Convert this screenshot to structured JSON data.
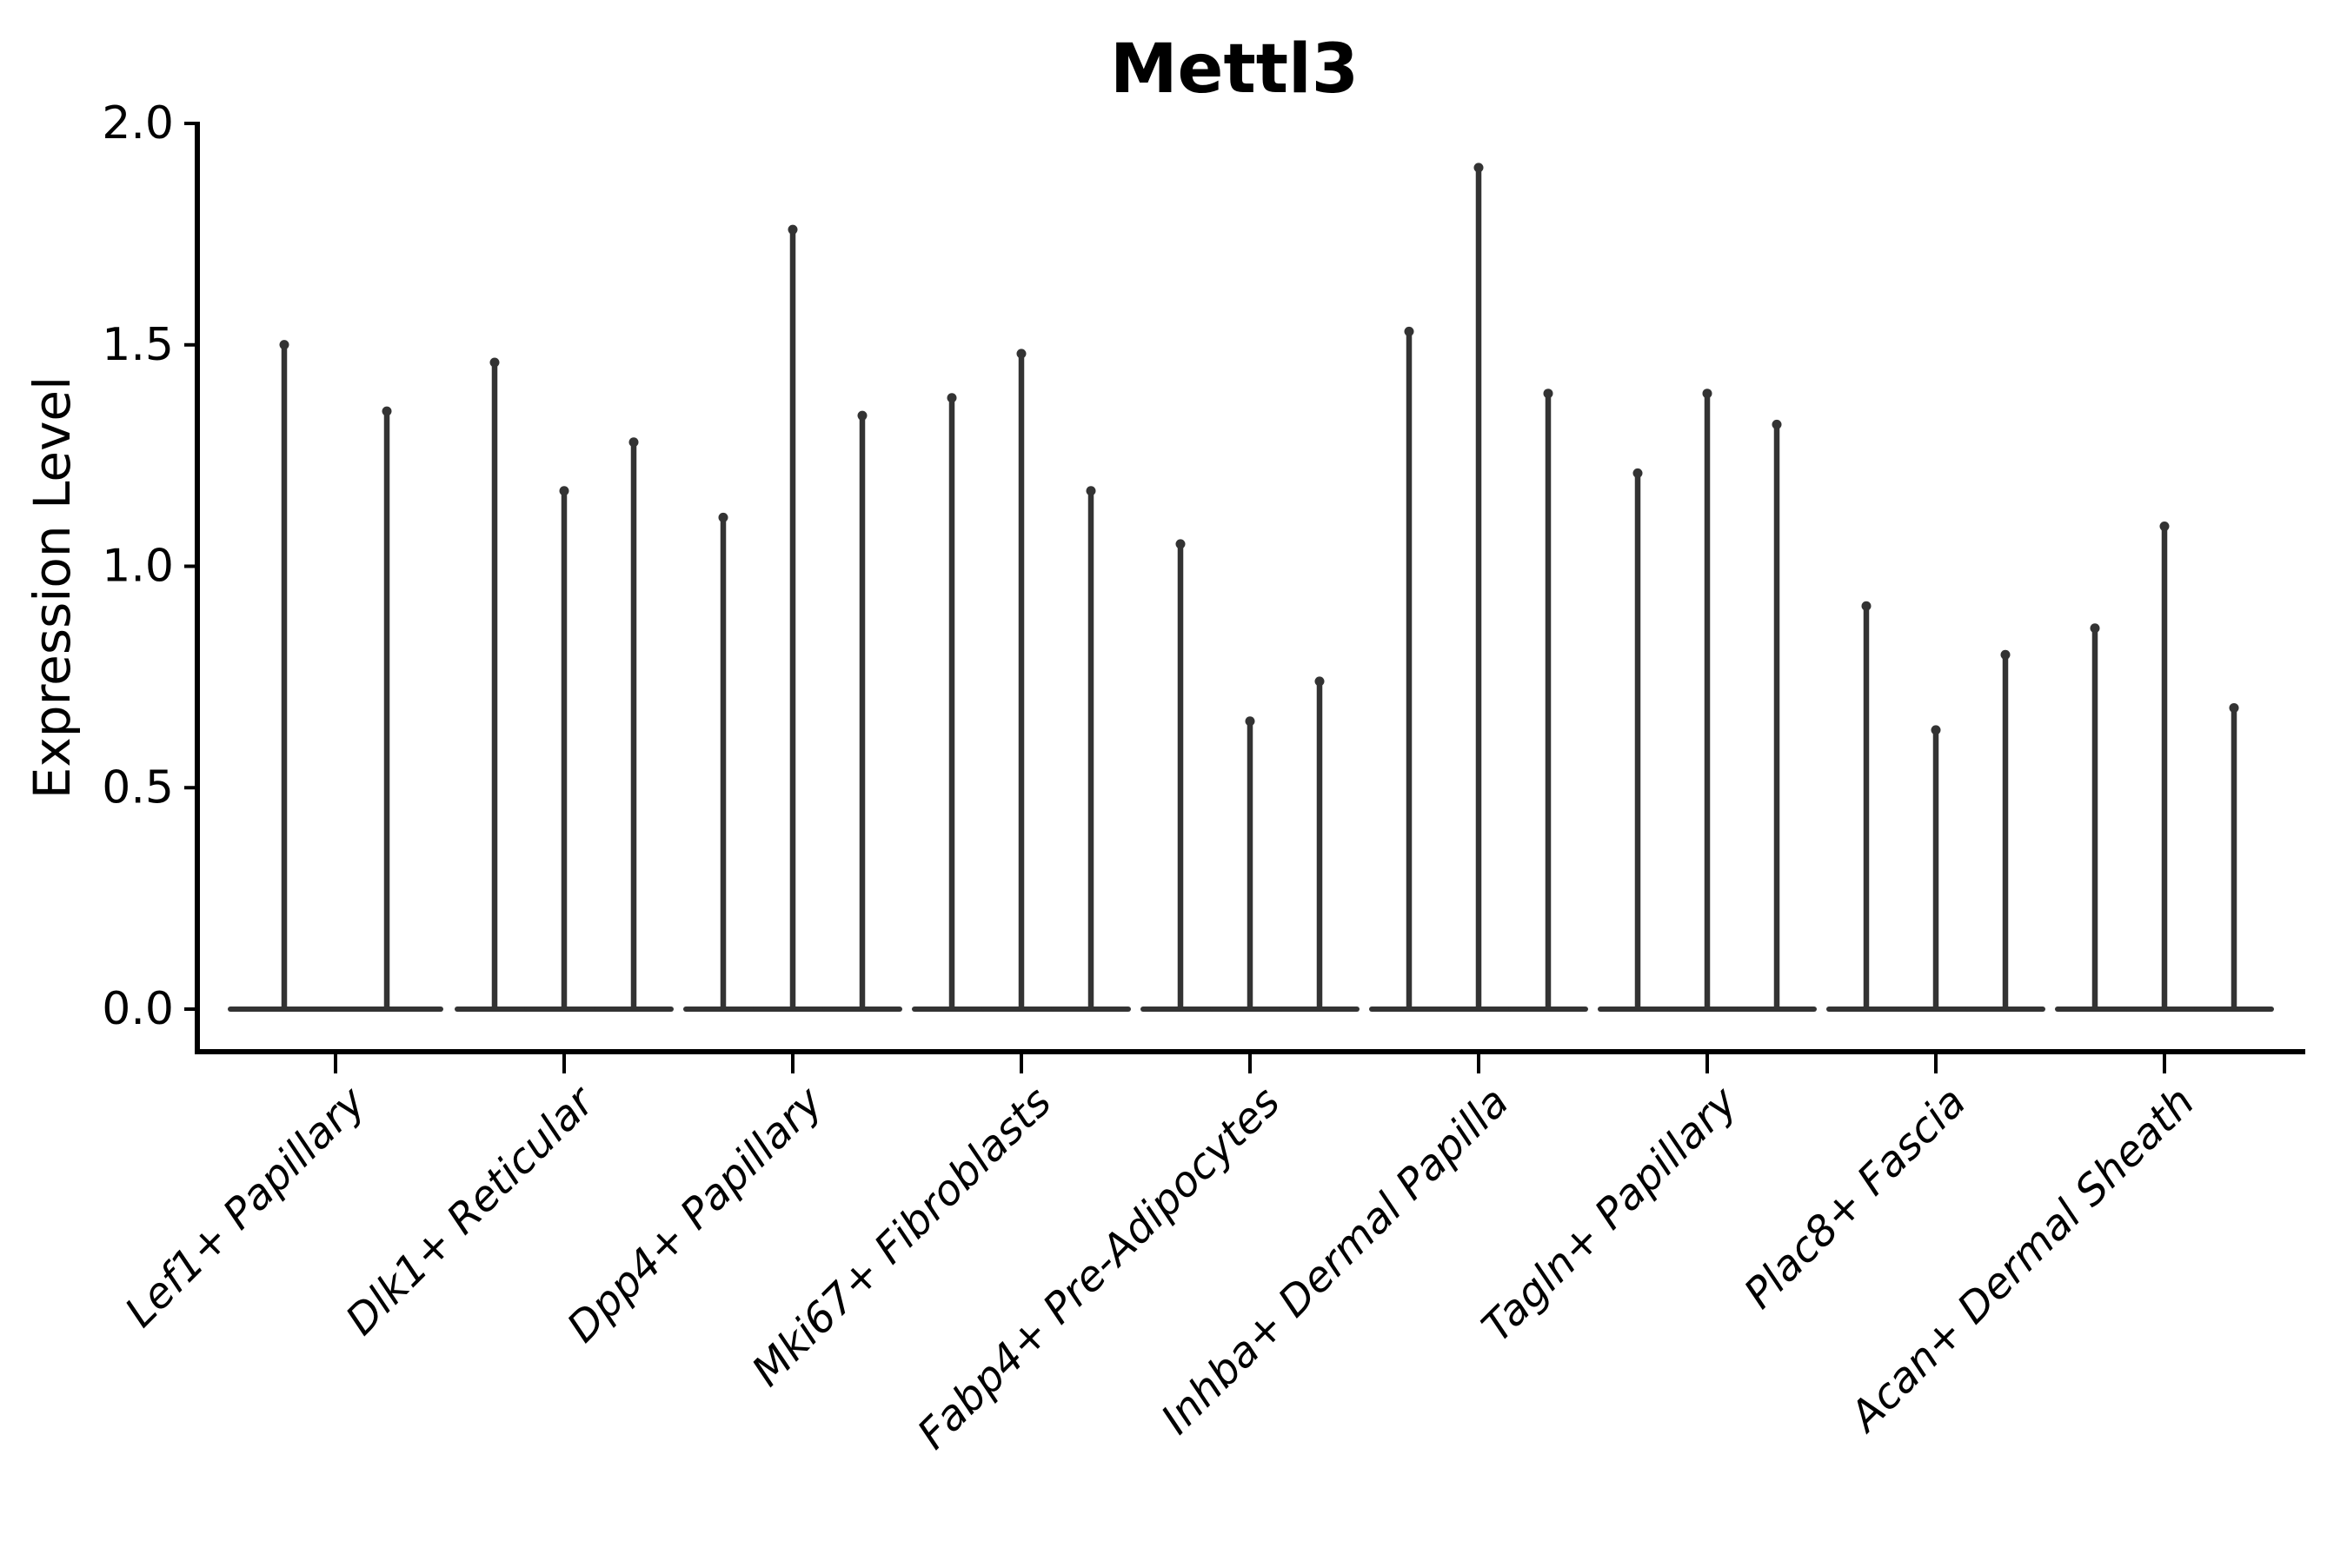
{
  "title": "Mettl3",
  "axes": {
    "ylabel": "Expression Level",
    "ytick_labels": [
      "0.0",
      "0.5",
      "1.0",
      "1.5",
      "2.0"
    ]
  },
  "colors": {
    "violin": "#333333",
    "axis": "#000000",
    "text": "#000000",
    "background": "#ffffff"
  },
  "chart_data": {
    "type": "violin",
    "title": "Mettl3",
    "xlabel": "",
    "ylabel": "Expression Level",
    "ylim": [
      0.0,
      2.0
    ],
    "yticks": [
      0.0,
      0.5,
      1.0,
      1.5,
      2.0
    ],
    "ytick_labels": [
      "0.0",
      "0.5",
      "1.0",
      "1.5",
      "2.0"
    ],
    "grid": false,
    "legend_position": "none",
    "x_tick_rotation_deg": 45,
    "categories": [
      "Lef1+ Papillary",
      "Dlk1+ Reticular",
      "Dpp4+ Papillary",
      "Mki67+ Fibroblasts",
      "Fabp4+ Pre-Adipocytes",
      "Inhba+ Dermal Papilla",
      "Tagln+ Papillary",
      "Plac8+ Fascia",
      "Acan+ Dermal Sheath"
    ],
    "series": [
      {
        "category": "Lef1+ Papillary",
        "violin_max_expression": [
          1.51,
          1.36
        ]
      },
      {
        "category": "Dlk1+ Reticular",
        "violin_max_expression": [
          1.47,
          1.18,
          1.29
        ]
      },
      {
        "category": "Dpp4+ Papillary",
        "violin_max_expression": [
          1.12,
          1.77,
          1.35
        ]
      },
      {
        "category": "Mki67+ Fibroblasts",
        "violin_max_expression": [
          1.39,
          1.49,
          1.18
        ]
      },
      {
        "category": "Fabp4+ Pre-Adipocytes",
        "violin_max_expression": [
          1.06,
          0.66,
          0.75
        ]
      },
      {
        "category": "Inhba+ Dermal Papilla",
        "violin_max_expression": [
          1.54,
          1.91,
          1.4
        ]
      },
      {
        "category": "Tagln+ Papillary",
        "violin_max_expression": [
          1.22,
          1.4,
          1.33
        ]
      },
      {
        "category": "Plac8+ Fascia",
        "violin_max_expression": [
          0.92,
          0.64,
          0.81
        ]
      },
      {
        "category": "Acan+ Dermal Sheath",
        "violin_max_expression": [
          0.87,
          1.1,
          0.69
        ]
      }
    ]
  }
}
